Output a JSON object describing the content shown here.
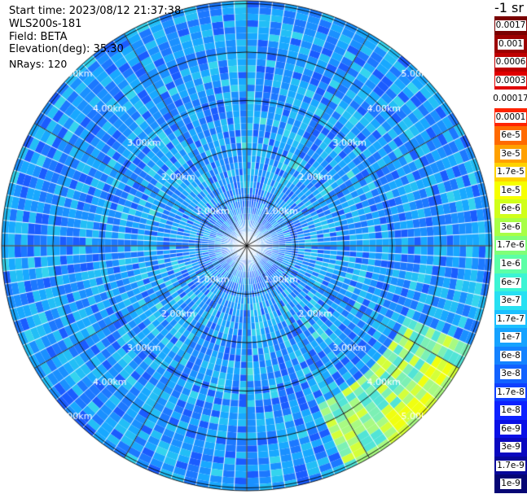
{
  "header": {
    "start_time": "Start time: 2023/08/12 21:37:38",
    "instrument": "WLS200s-181",
    "field": "Field: BETA",
    "elevation": "Elevation(deg): 35.30",
    "nrays": "NRays: 120"
  },
  "plot": {
    "range_ring_labels": [
      "1.00km",
      "2.00km",
      "3.00km",
      "4.00km",
      "5.00km"
    ],
    "range_rings_km": [
      1,
      2,
      3,
      4,
      5
    ]
  },
  "colorbar": {
    "unit": "-1 sr",
    "labels": [
      "0.0017",
      "0.001",
      "0.0006",
      "0.0003",
      "0.00017",
      "0.0001",
      "6e-5",
      "3e-5",
      "1.7e-5",
      "1e-5",
      "6e-6",
      "3e-6",
      "1.7e-6",
      "1e-6",
      "6e-7",
      "3e-7",
      "1.7e-7",
      "1e-7",
      "6e-8",
      "3e-8",
      "1.7e-8",
      "1e-8",
      "6e-9",
      "3e-9",
      "1.7e-9",
      "1e-9"
    ],
    "colors": [
      "#7a0000",
      "#9c0000",
      "#bf0000",
      "#e00000",
      "#ffffff",
      "#ff2400",
      "#ff6a00",
      "#ffa000",
      "#ffd200",
      "#f6ff00",
      "#d0ff1a",
      "#a8ff46",
      "#80ff78",
      "#5cffa6",
      "#3cf4d4",
      "#28e0f2",
      "#1cc0ff",
      "#16a2ff",
      "#1482ff",
      "#1262ff",
      "#1040ff",
      "#0e22ff",
      "#0a10e6",
      "#0a08c0",
      "#08089a",
      "#060674"
    ]
  }
}
